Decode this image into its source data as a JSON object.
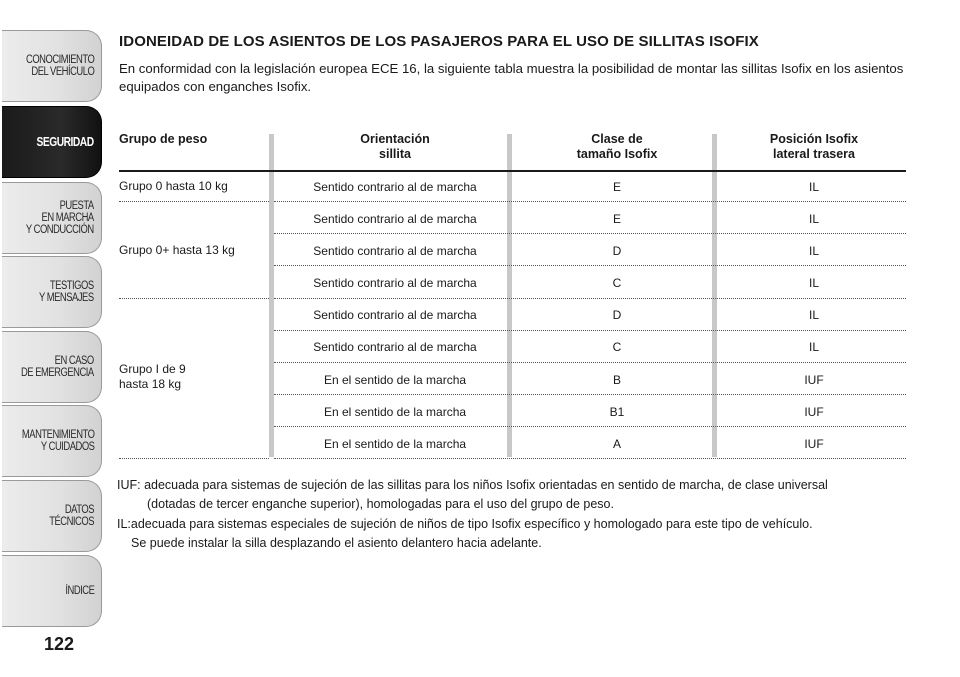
{
  "sidebar": {
    "tabs": [
      {
        "label": "CONOCIMIENTO\nDEL VEHÍCULO",
        "active": false
      },
      {
        "label": "SEGURIDAD",
        "active": true
      },
      {
        "label": "PUESTA\nEN MARCHA\nY CONDUCCIÓN",
        "active": false
      },
      {
        "label": "TESTIGOS\nY MENSAJES",
        "active": false
      },
      {
        "label": "EN CASO\nDE EMERGENCIA",
        "active": false
      },
      {
        "label": "MANTENIMIENTO\nY CUIDADOS",
        "active": false
      },
      {
        "label": "DATOS TÉCNICOS",
        "active": false
      },
      {
        "label": "ÍNDICE",
        "active": false
      }
    ],
    "page_number": "122"
  },
  "title": "IDONEIDAD DE LOS ASIENTOS DE LOS PASAJEROS PARA EL USO DE SILLITAS ISOFIX",
  "intro": "En conformidad con la legislación europea ECE 16, la siguiente tabla muestra la posibilidad de montar las sillitas Isofix en los asientos equipados con enganches Isofix.",
  "table": {
    "headers": [
      "Grupo de peso",
      "Orientación\nsillita",
      "Clase de\ntamaño Isofix",
      "Posición Isofix\nlateral trasera"
    ],
    "groups": [
      "Grupo 0 hasta 10 kg",
      "Grupo 0+ hasta 13 kg",
      "Grupo I de 9\nhasta 18 kg"
    ],
    "rows": [
      {
        "orientation": "Sentido contrario al de marcha",
        "class": "E",
        "position": "IL"
      },
      {
        "orientation": "Sentido contrario al de marcha",
        "class": "E",
        "position": "IL"
      },
      {
        "orientation": "Sentido contrario al de marcha",
        "class": "D",
        "position": "IL"
      },
      {
        "orientation": "Sentido contrario al de marcha",
        "class": "C",
        "position": "IL"
      },
      {
        "orientation": "Sentido contrario al de marcha",
        "class": "D",
        "position": "IL"
      },
      {
        "orientation": "Sentido contrario al de marcha",
        "class": "C",
        "position": "IL"
      },
      {
        "orientation": "En el sentido de la marcha",
        "class": "B",
        "position": "IUF"
      },
      {
        "orientation": "En el sentido de la marcha",
        "class": "B1",
        "position": "IUF"
      },
      {
        "orientation": "En el sentido de la marcha",
        "class": "A",
        "position": "IUF"
      }
    ]
  },
  "notes": {
    "iuf_line1": "IUF: adecuada para sistemas de sujeción de las sillitas para los niños Isofix orientadas en sentido de marcha, de clase universal",
    "iuf_line2": "(dotadas de tercer enganche superior), homologadas para el uso del grupo de peso.",
    "il_line1": "IL:adecuada para sistemas especiales de sujeción de niños de tipo Isofix específico y homologado para este tipo de vehículo.",
    "il_line2": "Se puede instalar la silla desplazando el asiento delantero hacia adelante."
  }
}
